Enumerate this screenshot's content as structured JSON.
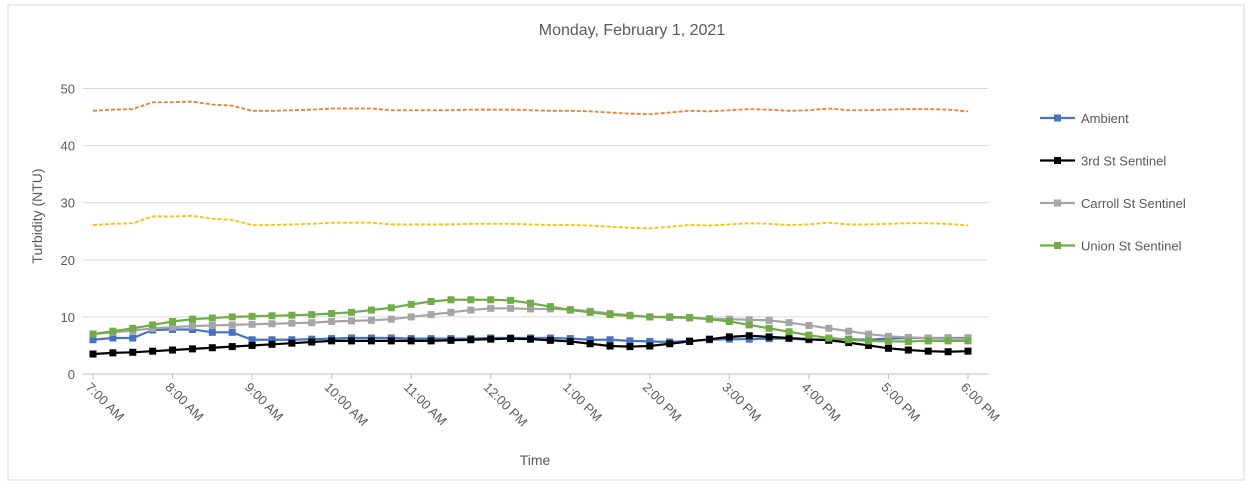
{
  "chart_data": {
    "type": "line",
    "title": "Monday, February 1, 2021",
    "x_label": "Time",
    "y_label": "Turbidity (NTU)",
    "categories": [
      "7:00 AM",
      null,
      null,
      null,
      "8:00 AM",
      null,
      null,
      null,
      "9:00 AM",
      null,
      null,
      null,
      "10:00 AM",
      null,
      null,
      null,
      "11:00 AM",
      null,
      null,
      null,
      "12:00 PM",
      null,
      null,
      null,
      "1:00 PM",
      null,
      null,
      null,
      "2:00 PM",
      null,
      null,
      null,
      "3:00 PM",
      null,
      null,
      null,
      "4:00 PM",
      null,
      null,
      null,
      "5:00 PM",
      null,
      null,
      null,
      "6:00 PM"
    ],
    "ylim": [
      0,
      55
    ],
    "yticks": [
      0,
      10,
      20,
      30,
      40,
      50
    ],
    "grid": true,
    "legend": "right",
    "series": [
      {
        "name": "Ambient",
        "color": "#4472c4",
        "markers": true,
        "values": [
          6,
          6.3,
          6.3,
          7.7,
          7.8,
          7.8,
          7.3,
          7.3,
          6,
          6,
          6,
          6.1,
          6.2,
          6.3,
          6.3,
          6.3,
          6.2,
          6.2,
          6.2,
          6.2,
          6.3,
          6.3,
          6.3,
          6.3,
          6.2,
          6,
          6,
          5.8,
          5.7,
          5.6,
          5.8,
          6,
          6.1,
          6.1,
          6.2,
          6.2,
          6,
          6,
          6.1,
          6,
          6.2,
          6.3,
          6.3,
          6.3,
          6.3
        ]
      },
      {
        "name": "3rd St Sentinel",
        "color": "#000000",
        "markers": true,
        "values": [
          3.5,
          3.7,
          3.8,
          4.0,
          4.2,
          4.4,
          4.6,
          4.8,
          5.0,
          5.2,
          5.4,
          5.6,
          5.8,
          5.8,
          5.8,
          5.8,
          5.8,
          5.8,
          5.9,
          6.0,
          6.1,
          6.2,
          6.1,
          5.9,
          5.7,
          5.3,
          4.9,
          4.8,
          4.9,
          5.3,
          5.7,
          6.1,
          6.5,
          6.7,
          6.5,
          6.3,
          6.1,
          5.9,
          5.5,
          5.0,
          4.5,
          4.2,
          4.0,
          3.9,
          4.0
        ]
      },
      {
        "name": "Carroll St Sentinel",
        "color": "#a5a5a5",
        "markers": true,
        "values": [
          7,
          7.3,
          7.6,
          8,
          8.2,
          8.4,
          8.5,
          8.6,
          8.7,
          8.8,
          8.9,
          9,
          9.2,
          9.3,
          9.4,
          9.6,
          10,
          10.4,
          10.8,
          11.2,
          11.5,
          11.5,
          11.4,
          11.4,
          11.3,
          11,
          10.6,
          10.3,
          10,
          9.9,
          9.8,
          9.7,
          9.6,
          9.5,
          9.4,
          9,
          8.5,
          8,
          7.5,
          7,
          6.6,
          6.4,
          6.3,
          6.2,
          6.2
        ]
      },
      {
        "name": "Union St Sentinel",
        "color": "#70ad47",
        "markers": true,
        "values": [
          7,
          7.5,
          8,
          8.6,
          9.2,
          9.6,
          9.8,
          10,
          10.1,
          10.2,
          10.3,
          10.4,
          10.6,
          10.8,
          11.2,
          11.6,
          12.2,
          12.7,
          13,
          13,
          13,
          12.9,
          12.4,
          11.8,
          11.2,
          10.8,
          10.4,
          10.2,
          10,
          10,
          9.9,
          9.6,
          9.2,
          8.6,
          8,
          7.4,
          6.8,
          6.3,
          6,
          5.8,
          5.7,
          5.7,
          5.8,
          5.8,
          5.8
        ]
      },
      {
        "color": "#ed7d31",
        "dashed": true,
        "values": [
          46.1,
          46.3,
          46.4,
          47.6,
          47.6,
          47.7,
          47.2,
          47,
          46.1,
          46.1,
          46.2,
          46.3,
          46.5,
          46.5,
          46.5,
          46.2,
          46.2,
          46.2,
          46.2,
          46.3,
          46.3,
          46.3,
          46.2,
          46.1,
          46.1,
          46.0,
          45.8,
          45.6,
          45.5,
          45.8,
          46.1,
          46.0,
          46.2,
          46.4,
          46.3,
          46.1,
          46.2,
          46.5,
          46.2,
          46.2,
          46.3,
          46.4,
          46.4,
          46.3,
          46.0
        ]
      },
      {
        "color": "#ffc000",
        "dashed": true,
        "values": [
          26.1,
          26.3,
          26.4,
          27.6,
          27.6,
          27.7,
          27.2,
          27,
          26.1,
          26.1,
          26.2,
          26.3,
          26.5,
          26.5,
          26.5,
          26.2,
          26.2,
          26.2,
          26.2,
          26.3,
          26.3,
          26.3,
          26.2,
          26.1,
          26.1,
          26.0,
          25.8,
          25.6,
          25.5,
          25.8,
          26.1,
          26.0,
          26.2,
          26.4,
          26.3,
          26.1,
          26.2,
          26.5,
          26.2,
          26.2,
          26.3,
          26.4,
          26.4,
          26.3,
          26.0
        ]
      }
    ]
  }
}
